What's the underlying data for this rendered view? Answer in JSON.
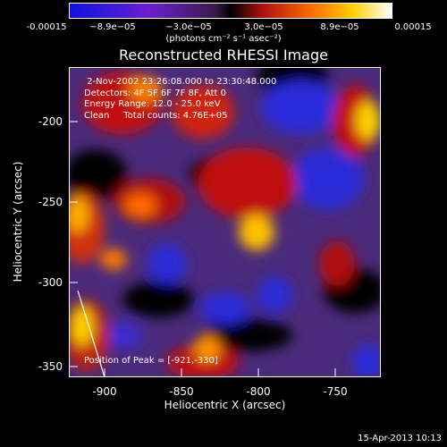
{
  "colorbar": {
    "ticks": [
      "-0.00015",
      "−8.9e−05",
      "−3.0e−05",
      "3.0e−05",
      "8.9e−05",
      "0.00015"
    ],
    "units": "(photons cm⁻² s⁻¹ asec⁻²)",
    "colors": [
      "#1010e0",
      "#6a1fcf",
      "#5a2a80",
      "#000000",
      "#b01010",
      "#ff6a00",
      "#ffd000",
      "#ffffff"
    ]
  },
  "title": "Reconstructed RHESSI Image",
  "annotation": {
    "line1": " 2-Nov-2002 23:26:08.000 to 23:30:48.000",
    "line2": "Detectors: 4F 5F 6F 7F 8F, Att 0",
    "line3": "Energy Range: 12.0 - 25.0 keV",
    "line4": "Clean     Total counts: 4.76E+05",
    "peak": "Position of Peak = [-921,-330]"
  },
  "axes": {
    "xlabel": "Heliocentric X (arcsec)",
    "ylabel": "Heliocentric Y (arcsec)",
    "xticks": [
      "-900",
      "-850",
      "-800",
      "-750"
    ],
    "yticks": [
      "-200",
      "-250",
      "-300",
      "-350"
    ]
  },
  "timestamp": "15-Apr-2013 10:13"
}
